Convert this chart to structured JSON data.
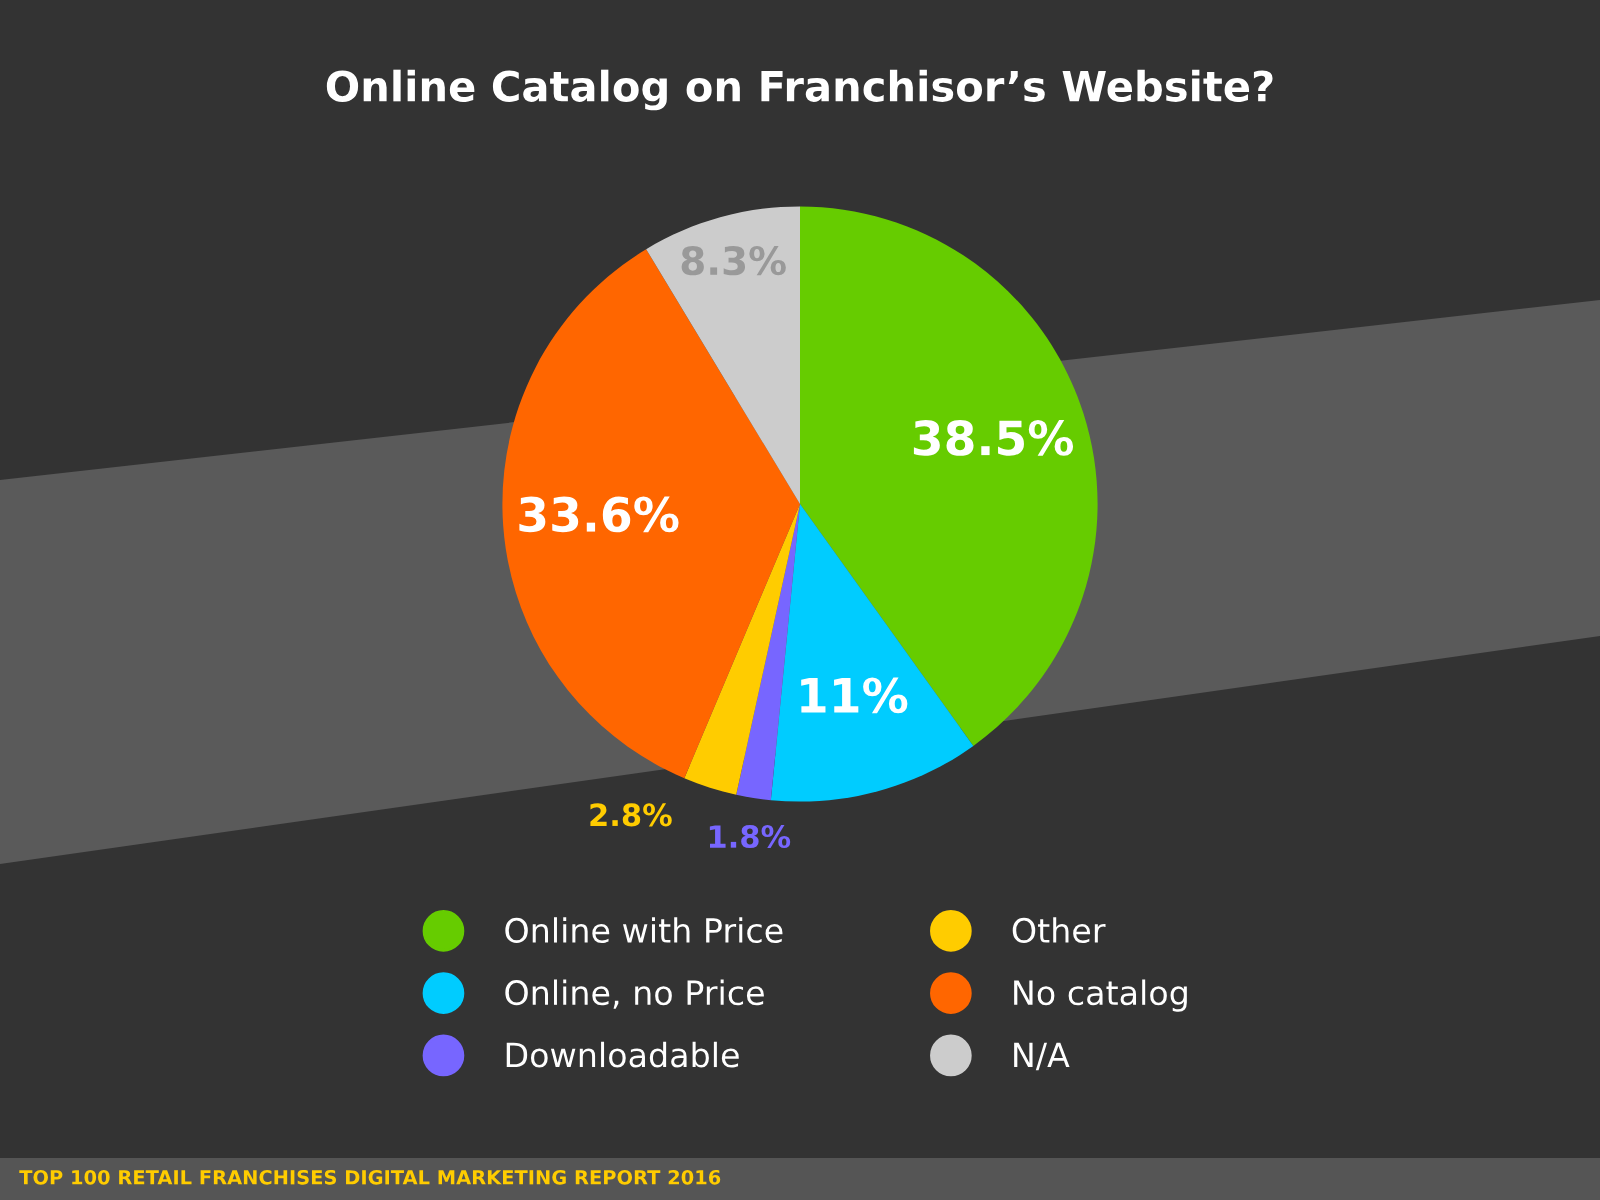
{
  "chart_data": {
    "type": "pie",
    "title": "Online Catalog on Franchisor’s Website?",
    "categories": [
      "Online with Price",
      "Online, no Price",
      "Downloadable",
      "Other",
      "No catalog",
      "N/A"
    ],
    "values": [
      38.5,
      11,
      1.8,
      2.8,
      33.6,
      8.3
    ],
    "colors": [
      "#66cc00",
      "#00ccff",
      "#7766ff",
      "#ffcc00",
      "#ff6600",
      "#cccccc"
    ],
    "value_labels": [
      "38.5%",
      "11%",
      "1.8%",
      "2.8%",
      "33.6%",
      "8.3%"
    ],
    "legend": "bottom",
    "annotations": [
      "TOP 100 RETAIL FRANCHISES DIGITAL MARKETING REPORT 2016"
    ]
  }
}
